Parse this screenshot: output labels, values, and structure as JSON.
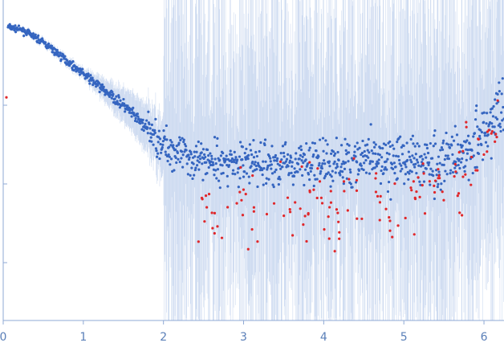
{
  "chart_data": {
    "type": "scatter",
    "title": "",
    "xlabel": "",
    "ylabel": "",
    "x_scale": "linear",
    "y_scale": "log",
    "xlim": [
      0,
      6.25
    ],
    "x_ticks": [
      0,
      1,
      2,
      3,
      4,
      5,
      6
    ],
    "x_tick_labels": [
      "0",
      "1",
      "2",
      "3",
      "4",
      "5",
      "6"
    ],
    "y_tick_labels": [],
    "y_ticks_log10": [
      -1,
      -2,
      -3
    ],
    "grid": false,
    "legend": "none",
    "colors": {
      "points": "#3565c0",
      "outliers": "#e0272a",
      "error_bars": "#a9c0e6",
      "axis": "#8fa9d4",
      "tick_text": "#5a7fb8"
    },
    "series": [
      {
        "role": "measured points",
        "color": "#3565c0",
        "x": [
          0.05,
          0.25,
          0.5,
          0.75,
          1.0,
          1.25,
          1.5,
          1.75,
          2.0,
          2.25,
          2.5,
          3.0,
          3.5,
          4.0,
          4.5,
          5.0,
          5.5,
          5.75,
          6.0,
          6.2
        ],
        "y_log10": [
          0.0,
          -0.05,
          -0.2,
          -0.4,
          -0.6,
          -0.8,
          -1.0,
          -1.25,
          -1.5,
          -1.65,
          -1.7,
          -1.75,
          -1.75,
          -1.75,
          -1.72,
          -1.7,
          -1.7,
          -1.6,
          -1.35,
          -1.05
        ]
      },
      {
        "role": "flagged points",
        "color": "#e0272a",
        "x": [
          0.04,
          2.3,
          2.5,
          3.0,
          3.5,
          4.0,
          4.5,
          5.0,
          5.5,
          6.0,
          6.2
        ],
        "y_log10": [
          -0.9,
          -2.1,
          -2.4,
          -2.3,
          -2.2,
          -2.25,
          -2.2,
          -2.1,
          -2.0,
          -1.6,
          -1.2
        ]
      }
    ]
  }
}
